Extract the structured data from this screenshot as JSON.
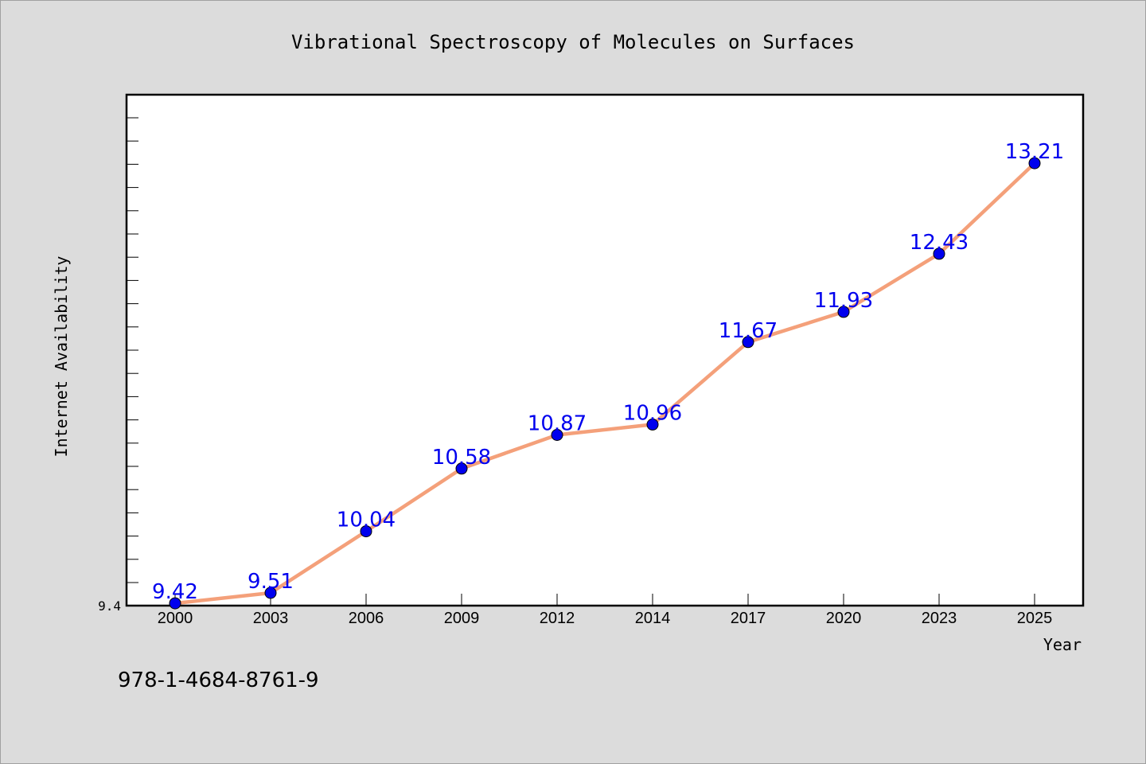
{
  "chart_data": {
    "type": "line",
    "title": "Vibrational Spectroscopy of Molecules on Surfaces",
    "xlabel": "Year",
    "ylabel": "Internet Availability",
    "categories": [
      "2000",
      "2003",
      "2006",
      "2009",
      "2012",
      "2014",
      "2017",
      "2020",
      "2023",
      "2025"
    ],
    "series": [
      {
        "values": [
          9.42,
          9.51,
          10.04,
          10.58,
          10.87,
          10.96,
          11.67,
          11.93,
          12.43,
          13.21
        ]
      }
    ],
    "data_labels": [
      "9.42",
      "9.51",
      "10.04",
      "10.58",
      "10.87",
      "10.96",
      "11.67",
      "11.93",
      "12.43",
      "13.21"
    ],
    "y_tick_labels": [
      "9.4"
    ],
    "ylim": [
      9.4,
      13.8
    ],
    "grid": false,
    "legend": "none",
    "colors": {
      "line": "#f4a07a",
      "marker": "#0000ee",
      "label": "#0000ee",
      "background": "#dcdcdc",
      "plot_background": "#ffffff"
    }
  },
  "footer": {
    "isbn": "978-1-4684-8761-9"
  }
}
